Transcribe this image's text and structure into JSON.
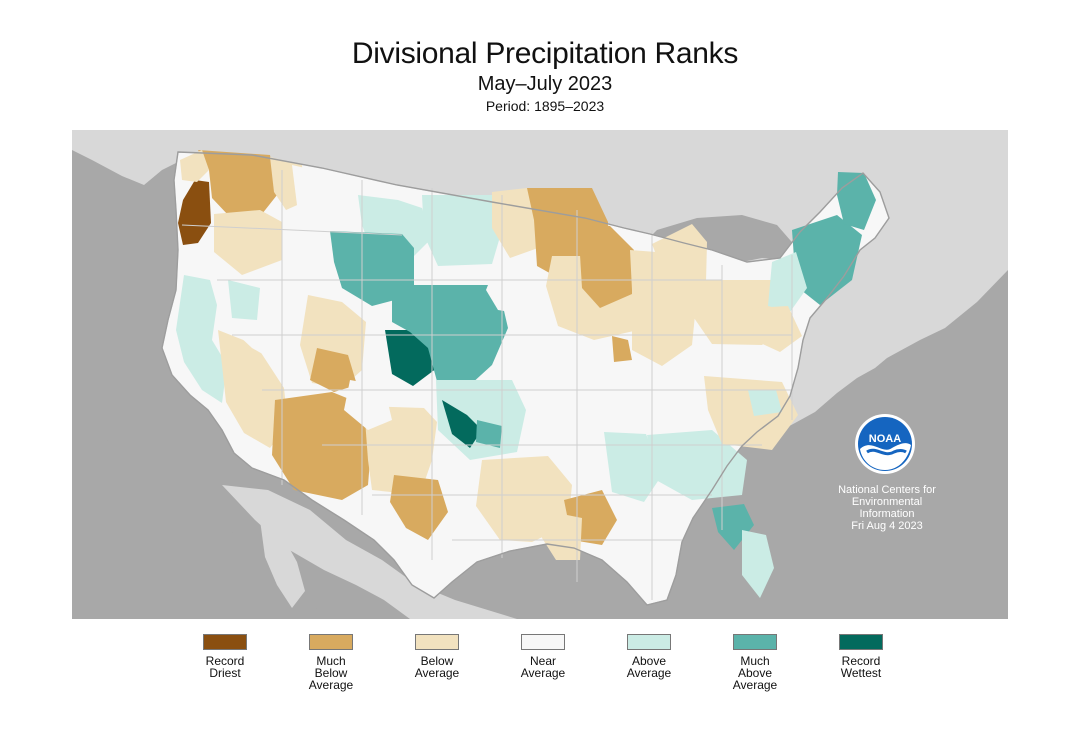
{
  "title": "Divisional Precipitation Ranks",
  "subtitle": "May–July 2023",
  "period": "Period: 1895–2023",
  "legend": {
    "items": [
      {
        "label": "Record\nDriest",
        "color": "#8a4f10"
      },
      {
        "label": "Much\nBelow\nAverage",
        "color": "#d8aa5f"
      },
      {
        "label": "Below\nAverage",
        "color": "#f2e2bf"
      },
      {
        "label": "Near\nAverage",
        "color": "#f7f7f7"
      },
      {
        "label": "Above\nAverage",
        "color": "#cbece5"
      },
      {
        "label": "Much\nAbove\nAverage",
        "color": "#5bb3aa"
      },
      {
        "label": "Record\nWettest",
        "color": "#036a5d"
      }
    ]
  },
  "credit": {
    "logo_text": "NOAA",
    "line1": "National Centers for",
    "line2": "Environmental",
    "line3": "Information",
    "date": "Fri Aug  4 2023"
  },
  "colors": {
    "ocean": "#a8a8a8",
    "land_outside": "#d8d8d8",
    "record_driest": "#8a4f10",
    "much_below": "#d8aa5f",
    "below": "#f2e2bf",
    "near": "#f7f7f7",
    "above": "#cbece5",
    "much_above": "#5bb3aa",
    "record_wettest": "#036a5d",
    "border": "#b8b8b8",
    "noaa_blue": "#1565c0"
  },
  "icons": {
    "noaa_logo": "noaa-logo-icon"
  }
}
